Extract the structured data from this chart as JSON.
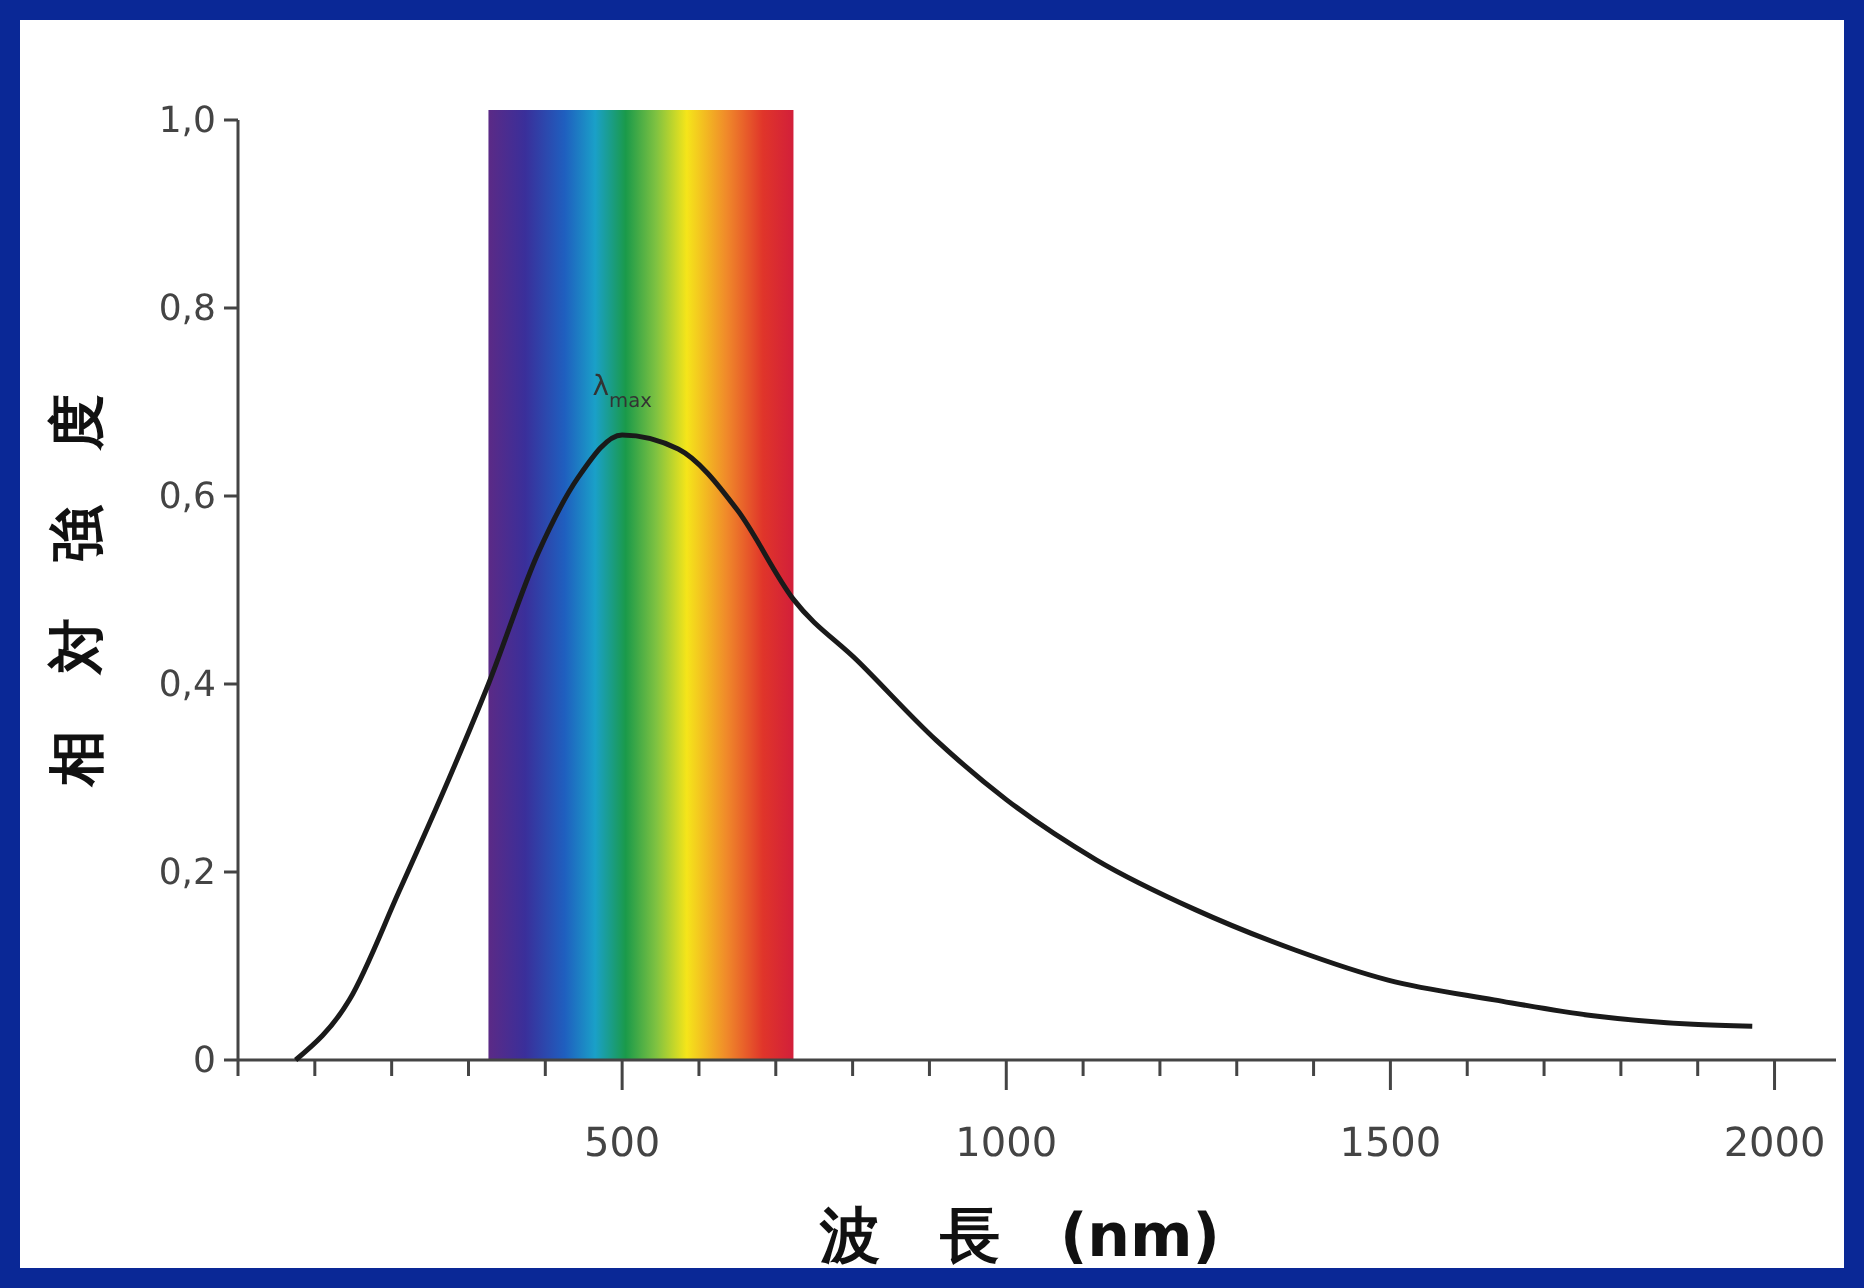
{
  "chart_data": {
    "type": "line",
    "xlabel": "波　長　(nm)",
    "ylabel": "相　対　強　度",
    "x": [
      75,
      145,
      210,
      275,
      326,
      391,
      443,
      500,
      573,
      650,
      723,
      806,
      909,
      1000,
      1117,
      1246,
      1376,
      1497,
      1635,
      1764,
      1894,
      1971
    ],
    "series": [
      {
        "color": "#1a1a1a",
        "values": [
          0,
          0.064,
          0.18,
          0.3,
          0.4,
          0.54,
          0.62,
          0.665,
          0.65,
          0.585,
          0.49,
          0.425,
          0.34,
          0.277,
          0.213,
          0.16,
          0.117,
          0.085,
          0.064,
          0.047,
          0.038,
          0.036
        ]
      }
    ],
    "xlim": [
      0,
      2080
    ],
    "ylim": [
      0,
      1.0
    ],
    "xticks": [
      {
        "value": 0,
        "label": null
      },
      {
        "value": 100,
        "label": null
      },
      {
        "value": 200,
        "label": null
      },
      {
        "value": 300,
        "label": null
      },
      {
        "value": 400,
        "label": null
      },
      500,
      {
        "value": 600,
        "label": null
      },
      {
        "value": 700,
        "label": null
      },
      {
        "value": 800,
        "label": null
      },
      {
        "value": 900,
        "label": null
      },
      1000,
      {
        "value": 1100,
        "label": null
      },
      {
        "value": 1200,
        "label": null
      },
      {
        "value": 1300,
        "label": null
      },
      {
        "value": 1400,
        "label": null
      },
      1500,
      {
        "value": 1600,
        "label": null
      },
      {
        "value": 1700,
        "label": null
      },
      {
        "value": 1800,
        "label": null
      },
      {
        "value": 1900,
        "label": null
      },
      2000
    ],
    "yticks": [
      0,
      {
        "value": 0.2,
        "label": "0,2"
      },
      {
        "value": 0.4,
        "label": "0,4"
      },
      {
        "value": 0.6,
        "label": "0,6"
      },
      {
        "value": 0.8,
        "label": "0,8"
      },
      {
        "value": 1.0,
        "label": "1,0"
      }
    ],
    "bands": [
      {
        "axis": "x",
        "from": 326,
        "to": 723
      }
    ],
    "annotations": [
      {
        "text": "λ$_{max}$",
        "x": 500,
        "y": 0.665
      }
    ],
    "grid": false,
    "marker": "none",
    "line_style": "solid"
  }
}
